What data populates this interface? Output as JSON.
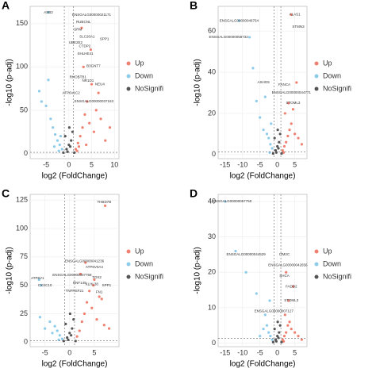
{
  "chart_data": [
    {
      "type": "scatter",
      "label": "A",
      "xlabel": "log2 (FoldChange)",
      "ylabel": "-log10 (p-adj)",
      "xlim": [
        -8.5,
        11
      ],
      "ylim": [
        -6,
        170
      ],
      "xticks": [
        -5,
        0,
        5,
        10
      ],
      "yticks": [
        0,
        50,
        100,
        150
      ],
      "vlines": [
        -1,
        1
      ],
      "hline": 1.3,
      "grid": true,
      "series": [
        {
          "name": "Up",
          "color": "#f08070",
          "x": [
            1.5,
            2,
            2.5,
            3,
            3.5,
            4,
            4.5,
            5,
            5.5,
            6,
            7,
            8,
            2.2,
            3.2,
            4.8,
            6.5,
            1.8,
            2.8,
            9,
            3.8
          ],
          "values": [
            5,
            12,
            20,
            30,
            45,
            60,
            35,
            80,
            25,
            50,
            40,
            15,
            8,
            100,
            120,
            70,
            3,
            145,
            30,
            10
          ]
        },
        {
          "name": "Down",
          "color": "#8ccbea",
          "x": [
            -1.5,
            -2,
            -2.5,
            -3,
            -3.5,
            -4,
            -5,
            -6,
            -2.2,
            -3.2,
            -1.8,
            -4.5,
            -6.5,
            -4.5
          ],
          "values": [
            5,
            10,
            15,
            22,
            30,
            40,
            55,
            60,
            3,
            8,
            20,
            85,
            72,
            163
          ]
        },
        {
          "name": "NoSignifi",
          "color": "#555555",
          "x": [
            -0.5,
            0,
            0.5,
            -0.8,
            0.8,
            -0.3,
            0.3,
            -1.2,
            1.2,
            0.1
          ],
          "values": [
            5,
            10,
            15,
            20,
            25,
            2,
            8,
            1,
            1,
            30
          ]
        }
      ],
      "annotations": [
        {
          "text": "ENSGALG00000021171",
          "x": 5,
          "y": 160,
          "color": "#f08070"
        },
        {
          "text": "RUBCNL",
          "x": 3.2,
          "y": 152,
          "color": "#f08070"
        },
        {
          "text": "SRM",
          "x": 2,
          "y": 143,
          "color": "#f08070"
        },
        {
          "text": "SLC26A1",
          "x": 4,
          "y": 135,
          "color": "#f08070"
        },
        {
          "text": "SPP1",
          "x": 7.8,
          "y": 132,
          "color": "#f08070"
        },
        {
          "text": "UBE2E2",
          "x": 1.5,
          "y": 128,
          "color": "#f08070"
        },
        {
          "text": "CTDP2",
          "x": 3.5,
          "y": 124,
          "color": "#f08070"
        },
        {
          "text": "SHLHE41",
          "x": 3.6,
          "y": 115,
          "color": "#f08070"
        },
        {
          "text": "B3GNT7",
          "x": 5.4,
          "y": 101,
          "color": "#f08070"
        },
        {
          "text": "RHOBTB1",
          "x": 2,
          "y": 88,
          "color": "#f08070"
        },
        {
          "text": "NR1D1",
          "x": 4.2,
          "y": 84,
          "color": "#f08070"
        },
        {
          "text": "NEU4",
          "x": 6.8,
          "y": 80,
          "color": "#f08070"
        },
        {
          "text": "ATP6V1C2",
          "x": 0.5,
          "y": 70,
          "color": "#f08070"
        },
        {
          "text": "ENSGALG00000037163",
          "x": 5.5,
          "y": 60,
          "color": "#f08070"
        },
        {
          "text": "ASB2",
          "x": -4.5,
          "y": 163,
          "color": "#8ccbea"
        }
      ]
    },
    {
      "type": "scatter",
      "label": "B",
      "xlabel": "log2 (FoldChange)",
      "ylabel": "-log10 (p-adj)",
      "xlim": [
        -17,
        8.5
      ],
      "ylim": [
        -2,
        72
      ],
      "xticks": [
        -15,
        -10,
        -5,
        0,
        5
      ],
      "yticks": [
        0,
        20,
        40,
        60
      ],
      "vlines": [
        -1,
        1
      ],
      "hline": 1.3,
      "grid": true,
      "series": [
        {
          "name": "Up",
          "color": "#f08070",
          "x": [
            1.5,
            2,
            2.5,
            3,
            3.5,
            4,
            5,
            6,
            2.2,
            3.2,
            4.5,
            5.5,
            7,
            1.8,
            4
          ],
          "values": [
            2,
            4,
            6,
            9,
            12,
            15,
            10,
            8,
            20,
            25,
            22,
            35,
            5,
            1,
            68
          ]
        },
        {
          "name": "Down",
          "color": "#8ccbea",
          "x": [
            -1.5,
            -2,
            -2.5,
            -3,
            -4,
            -5,
            -3.5,
            -2.2,
            -6,
            -8,
            -11,
            -7,
            -1.8
          ],
          "values": [
            3,
            5,
            8,
            10,
            12,
            18,
            28,
            1,
            26,
            57,
            65,
            42,
            15
          ]
        },
        {
          "name": "NoSignifi",
          "color": "#555555",
          "x": [
            -0.5,
            0,
            0.5,
            -0.8,
            0.8,
            -0.3,
            0.3,
            -1.2,
            1.2,
            0.1
          ],
          "values": [
            2,
            4,
            6,
            8,
            10,
            1,
            3,
            0.5,
            0.5,
            12
          ]
        }
      ],
      "annotations": [
        {
          "text": "ALAS1",
          "x": 5,
          "y": 68,
          "color": "#f08070"
        },
        {
          "text": "STMN3",
          "x": 6,
          "y": 62,
          "color": "#f08070"
        },
        {
          "text": "FANCA",
          "x": 2,
          "y": 34,
          "color": "#f08070"
        },
        {
          "text": "ENSGALG00000044771",
          "x": 4,
          "y": 30,
          "color": "#f08070"
        },
        {
          "text": "STOML3",
          "x": 4.5,
          "y": 25,
          "color": "#f08070"
        },
        {
          "text": "ENSGALG00000046754",
          "x": -11,
          "y": 65,
          "color": "#8ccbea"
        },
        {
          "text": "ENSGALG00000058732",
          "x": -14,
          "y": 57,
          "color": "#8ccbea"
        },
        {
          "text": "ASHG5",
          "x": -4,
          "y": 35,
          "color": "#8ccbea"
        }
      ]
    },
    {
      "type": "scatter",
      "label": "C",
      "xlabel": "log2 (FoldChange)",
      "ylabel": "-log10 (p-adj)",
      "xlim": [
        -8,
        10
      ],
      "ylim": [
        -4,
        130
      ],
      "xticks": [
        -5,
        0,
        5
      ],
      "yticks": [
        0,
        25,
        50,
        75,
        100,
        125
      ],
      "vlines": [
        -1,
        1
      ],
      "hline": 1.3,
      "grid": true,
      "series": [
        {
          "name": "Up",
          "color": "#f08070",
          "x": [
            1.5,
            2,
            2.5,
            3,
            3.5,
            4,
            4.5,
            5,
            5.5,
            6,
            7,
            8,
            2.2,
            3.2,
            4.8,
            6.5,
            7.2
          ],
          "values": [
            5,
            10,
            18,
            25,
            35,
            45,
            30,
            55,
            20,
            40,
            15,
            12,
            60,
            70,
            50,
            38,
            120
          ]
        },
        {
          "name": "Down",
          "color": "#8ccbea",
          "x": [
            -1.5,
            -2,
            -2.5,
            -3,
            -3.5,
            -4,
            -5,
            -6,
            -2.2,
            -6.2,
            -5.8
          ],
          "values": [
            3,
            6,
            10,
            14,
            8,
            18,
            12,
            22,
            2,
            55,
            50
          ]
        },
        {
          "name": "NoSignifi",
          "color": "#555555",
          "x": [
            -0.5,
            0,
            0.5,
            -0.8,
            0.8,
            -0.3,
            0.3,
            -1.2,
            1.2,
            0.1
          ],
          "values": [
            4,
            8,
            12,
            16,
            20,
            2,
            6,
            1,
            1,
            25
          ]
        }
      ],
      "annotations": [
        {
          "text": "THBD7B",
          "x": 7,
          "y": 123,
          "color": "#f08070"
        },
        {
          "text": "ENSGALG00000041236",
          "x": 3,
          "y": 71,
          "color": "#f08070"
        },
        {
          "text": "ATP6V0A4",
          "x": 5,
          "y": 66,
          "color": "#f08070"
        },
        {
          "text": "ENSGALG00000007758",
          "x": 0.5,
          "y": 59,
          "color": "#f08070"
        },
        {
          "text": "TOX2",
          "x": 5.5,
          "y": 57,
          "color": "#f08070"
        },
        {
          "text": "RNF149",
          "x": 2,
          "y": 52,
          "color": "#f08070"
        },
        {
          "text": "KLHL38",
          "x": 4.5,
          "y": 51,
          "color": "#f08070"
        },
        {
          "text": "SPP1",
          "x": 7.5,
          "y": 50,
          "color": "#f08070"
        },
        {
          "text": "TNFRSF21",
          "x": 1,
          "y": 45,
          "color": "#f08070"
        },
        {
          "text": "FN1",
          "x": 6,
          "y": 44,
          "color": "#f08070"
        },
        {
          "text": "ATP6V1",
          "x": -6.5,
          "y": 56,
          "color": "#8ccbea"
        },
        {
          "text": "CXXC10",
          "x": -5,
          "y": 50,
          "color": "#8ccbea"
        }
      ]
    },
    {
      "type": "scatter",
      "label": "D",
      "xlabel": "log2 (FoldChange)",
      "ylabel": "-log10 (p-adj)",
      "xlim": [
        -17,
        8.5
      ],
      "ylim": [
        -1,
        42
      ],
      "xticks": [
        -15,
        -10,
        -5,
        0,
        5
      ],
      "yticks": [
        0,
        10,
        20,
        30,
        40
      ],
      "vlines": [
        -1,
        1
      ],
      "hline": 1.3,
      "grid": true,
      "series": [
        {
          "name": "Up",
          "color": "#f08070",
          "x": [
            1.5,
            2,
            2.5,
            3,
            3.5,
            4,
            5,
            6,
            2.2,
            3.2,
            4.5,
            1.8,
            2.5,
            7
          ],
          "values": [
            1,
            2,
            3,
            5,
            6,
            4,
            3,
            2,
            8,
            12,
            16,
            0.5,
            20,
            1
          ]
        },
        {
          "name": "Down",
          "color": "#8ccbea",
          "x": [
            -1.5,
            -2,
            -2.5,
            -3,
            -4,
            -5,
            -3.5,
            -2.2,
            -6,
            -15,
            -12,
            -9
          ],
          "values": [
            1,
            2,
            3,
            5,
            4,
            2,
            8,
            12,
            14,
            40,
            26,
            20
          ]
        },
        {
          "name": "NoSignifi",
          "color": "#555555",
          "x": [
            -0.5,
            0,
            0.5,
            -0.8,
            0.8,
            -0.3,
            0.3,
            -1.2,
            1.2,
            0.1
          ],
          "values": [
            1,
            2,
            3,
            4,
            5,
            0.5,
            1.5,
            0.3,
            0.3,
            6
          ]
        }
      ],
      "annotations": [
        {
          "text": "ITM2C",
          "x": 2,
          "y": 25,
          "color": "#f08070"
        },
        {
          "text": "ENSGALG00000042656",
          "x": 3,
          "y": 22,
          "color": "#f08070"
        },
        {
          "text": "SHCA",
          "x": 2,
          "y": 19,
          "color": "#f08070"
        },
        {
          "text": "FADD2",
          "x": 4,
          "y": 16,
          "color": "#f08070"
        },
        {
          "text": "STOML3",
          "x": 4,
          "y": 12,
          "color": "#f08070"
        },
        {
          "text": "ENSGALG00000007127",
          "x": -1,
          "y": 9,
          "color": "#f08070"
        },
        {
          "text": "ENSGALG00000057750",
          "x": -13,
          "y": 40,
          "color": "#8ccbea"
        },
        {
          "text": "ENSGALG00000044529",
          "x": -9,
          "y": 25,
          "color": "#8ccbea"
        }
      ]
    }
  ]
}
